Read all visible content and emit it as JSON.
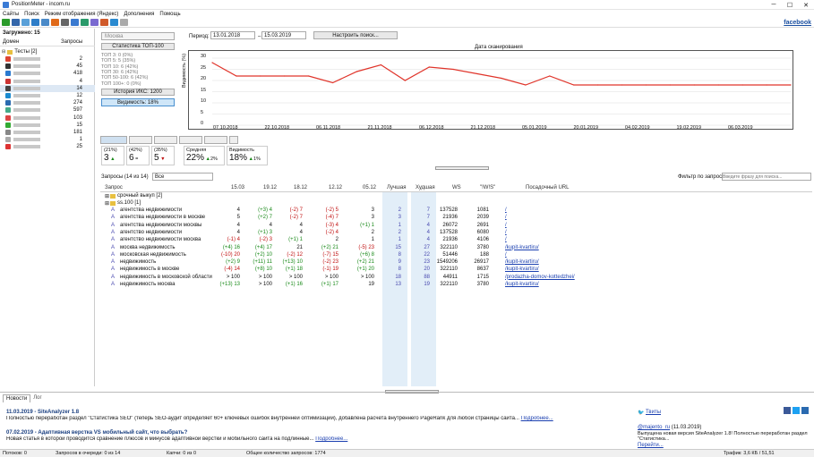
{
  "app_title": "PositionMeter - incom.ru",
  "menu": [
    "Сайты",
    "Поиск",
    "Режим отображения (Яндекс)",
    "Дополнения",
    "Помощь"
  ],
  "facebook": "facebook",
  "left": {
    "loaded": "Загружено: 15",
    "col_domain": "Домен",
    "col_queries": "Запросы",
    "tests": "Тесты [2]",
    "counts": [
      "2",
      "45",
      "418",
      "4",
      "14",
      "12",
      "274",
      "597",
      "103",
      "15",
      "181",
      "1",
      "25"
    ]
  },
  "controls": {
    "engine": "Москва",
    "stats_btn": "Статистика ТОП-100",
    "top_stats": [
      "ТОП 3: 0 (0%)",
      "ТОП 5: 5 (35%)",
      "ТОП 10: 6 (42%)",
      "ТОП 30: 6 (42%)",
      "ТОП 50-100: 6 (42%)",
      "ТОП 100+: 0 (0%)"
    ],
    "history_btn": "История ИКС: 1200",
    "visibility_btn": "Видимость: 18%",
    "period_label": "Период:",
    "date_from": "13.01.2018",
    "date_to": "15.03.2019",
    "setup_search": "Настроить поиск..."
  },
  "chart_data": {
    "type": "line",
    "title": "Дата сканирования",
    "ylabel": "Видимость (%)",
    "ylim": [
      0,
      30
    ],
    "yticks": [
      "30",
      "25",
      "20",
      "15",
      "10",
      "5",
      "0"
    ],
    "xticks": [
      "07.10.2018",
      "22.10.2018",
      "06.11.2018",
      "21.11.2018",
      "06.12.2018",
      "21.12.2018",
      "05.01.2019",
      "20.01.2019",
      "04.02.2019",
      "19.02.2019",
      "06.03.2019"
    ],
    "series": [
      {
        "values": [
          28,
          22,
          22,
          22,
          22,
          19,
          24,
          27,
          20,
          26,
          25,
          23,
          21,
          18,
          22,
          18,
          18,
          18,
          18,
          18,
          18,
          18,
          18,
          18,
          18
        ]
      }
    ],
    "color": "#e0342a"
  },
  "summary": {
    "c1_a": "(21%)",
    "c1_v": "3",
    "c2_a": "(42%)",
    "c2_v": "6",
    "c3_a": "(35%)",
    "c3_v": "5",
    "avg_label": "Средняя",
    "avg_v": "22%",
    "avg_d": "2%",
    "vis_label": "Видимость",
    "vis_v": "18%",
    "vis_d": "1%"
  },
  "grid": {
    "queries_label": "Запросы (14 из 14)",
    "filter_select": "Все",
    "filter_label": "Фильтр по запросу:",
    "filter_placeholder": "Введите фразу для поиска...",
    "headers": [
      "Запрос",
      "15.03",
      "19.12",
      "18.12",
      "12.12",
      "05.12",
      "Лучшая",
      "Худшая",
      "WS",
      "\"!W!S\"",
      "Посадочный URL"
    ],
    "groups": [
      "срочный выкуп [2]",
      "ss.100 [1]"
    ],
    "rows": [
      [
        "агентства недвижимости",
        "4",
        "(+3) 4",
        "(-2) 7",
        "(-2) 5",
        "3",
        "2",
        "7",
        "137528",
        "1081",
        "/"
      ],
      [
        "агентства недвижимости в москве",
        "5",
        "(+2) 7",
        "(-2) 7",
        "(-4) 7",
        "3",
        "3",
        "7",
        "21936",
        "2039",
        "/"
      ],
      [
        "агентства недвижимости москвы",
        "4",
        "4",
        "4",
        "(-3) 4",
        "(+1) 1",
        "1",
        "4",
        "26072",
        "2691",
        "/"
      ],
      [
        "агентство недвижимости",
        "4",
        "(+1) 3",
        "4",
        "(-2) 4",
        "2",
        "2",
        "4",
        "137528",
        "6080",
        "/"
      ],
      [
        "агентство недвижимости москва",
        "(-1) 4",
        "(-2) 3",
        "(+1) 1",
        "2",
        "1",
        "1",
        "4",
        "21936",
        "4106",
        "/"
      ],
      [
        "москва недвижимость",
        "(+4) 16",
        "(+4) 17",
        "21",
        "(+2) 21",
        "(-5) 23",
        "15",
        "27",
        "322110",
        "3780",
        "/kupit-kvartiru/"
      ],
      [
        "московская недвижимость",
        "(-10) 20",
        "(+2) 10",
        "(-2) 12",
        "(-7) 15",
        "(+6) 8",
        "8",
        "22",
        "51446",
        "188",
        "/"
      ],
      [
        "недвижимость",
        "(+2) 9",
        "(+11) 11",
        "(+13) 10",
        "(-2) 23",
        "(+2) 21",
        "9",
        "23",
        "1549206",
        "26917",
        "/kupit-kvartiru/"
      ],
      [
        "недвижимость в москве",
        "(-4) 14",
        "(+8) 10",
        "(+1) 18",
        "(-1) 19",
        "(+1) 20",
        "8",
        "20",
        "322110",
        "8637",
        "/kupit-kvartiru/"
      ],
      [
        "недвижимость в московской области",
        "> 100",
        "> 100",
        "> 100",
        "> 100",
        "> 100",
        "18",
        "88",
        "44911",
        "1715",
        "/prodazha-domov-kottedzhei/"
      ],
      [
        "недвижимость москва",
        "(+13) 13",
        "> 100",
        "(+1) 16",
        "(+1) 17",
        "19",
        "13",
        "19",
        "322110",
        "3780",
        "/kupit-kvartiru/"
      ]
    ]
  },
  "news": {
    "tab_news": "Новости",
    "tab_log": "Лог",
    "items": [
      {
        "title": "11.03.2019 - SiteAnalyzer 1.8",
        "text": "Полностью переработан раздел \"Статистика SEO\" (теперь SEO-аудит определяет 60+ ключевых ошибок внутренней оптимизации), добавлена расчета внутреннего PageRank для любой страницы сайта...",
        "more": "Подробнее..."
      },
      {
        "title": "07.02.2019 - Адаптивная верстка VS мобильный сайт, что выбрать?",
        "text": "Новая статья в которой проводится сравнение плюсов и минусов адаптивной верстки и мобильного сайта на подлинные...",
        "more": "Подробнее..."
      }
    ],
    "tweets_label": "Твиты",
    "tweet_user": "@majento_ru",
    "tweet_date": "(11.03.2019)",
    "tweet_text": "Выпущена новая версия SiteAnalyzer 1.8! Полностью переработан раздел \"Статистика...",
    "tweet_more": "Перейти..."
  },
  "status": {
    "threads": "Потоков: 0",
    "queue": "Запросов в очереди: 0 из 14",
    "captcha": "Капчи: 0 из 0",
    "total": "Общее количество запросов: 1774",
    "traffic": "Трафик: 3,6 КБ / 51,51"
  }
}
